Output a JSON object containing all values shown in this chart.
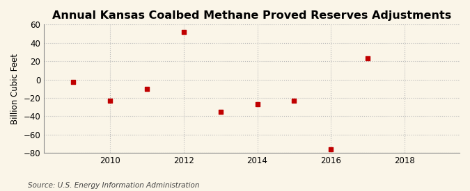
{
  "title": "Annual Kansas Coalbed Methane Proved Reserves Adjustments",
  "ylabel": "Billion Cubic Feet",
  "source": "Source: U.S. Energy Information Administration",
  "years": [
    2009,
    2010,
    2011,
    2012,
    2013,
    2014,
    2015,
    2016,
    2017
  ],
  "values": [
    -3,
    -23,
    -10,
    52,
    -35,
    -27,
    -23,
    -76,
    23
  ],
  "marker_color": "#c00000",
  "marker": "s",
  "marker_size": 5,
  "xlim": [
    2008.2,
    2019.5
  ],
  "ylim": [
    -80,
    60
  ],
  "yticks": [
    -80,
    -60,
    -40,
    -20,
    0,
    20,
    40,
    60
  ],
  "xticks": [
    2010,
    2012,
    2014,
    2016,
    2018
  ],
  "grid_color": "#bbbbbb",
  "bg_color": "#faf5e8",
  "title_fontsize": 11.5,
  "label_fontsize": 8.5,
  "tick_fontsize": 8.5,
  "source_fontsize": 7.5
}
